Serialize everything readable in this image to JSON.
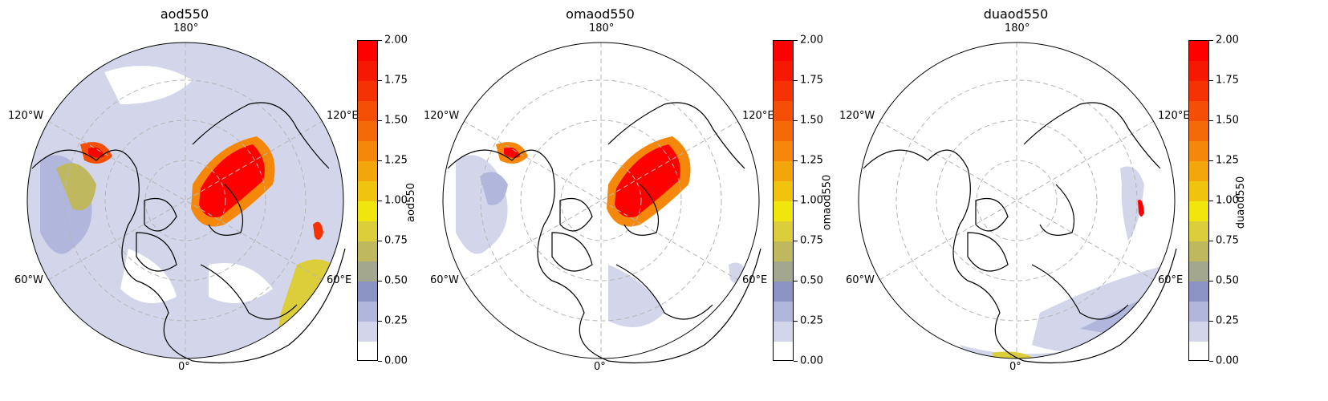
{
  "panels": [
    {
      "title": "aod550",
      "colorbar_label": "aod550"
    },
    {
      "title": "omaod550",
      "colorbar_label": "omaod550"
    },
    {
      "title": "duaod550",
      "colorbar_label": "duaod550"
    }
  ],
  "longitude_labels": {
    "top": "180°",
    "bottom": "0°",
    "upper_left": "120°W",
    "upper_right": "120°E",
    "lower_left": "60°W",
    "lower_right": "60°E"
  },
  "colorbar": {
    "ticks": [
      "0.00",
      "0.25",
      "0.50",
      "0.75",
      "1.00",
      "1.25",
      "1.50",
      "1.75",
      "2.00"
    ],
    "levels": 16,
    "colors": [
      "#ffffff",
      "#d3d6ea",
      "#b0b6dc",
      "#8b93c4",
      "#a3a78e",
      "#c0b85e",
      "#dccd3a",
      "#f0e60e",
      "#f0c40e",
      "#f3a60c",
      "#f5880a",
      "#f56a08",
      "#f54e06",
      "#f53204",
      "#f51802",
      "#ff0000"
    ]
  },
  "colors": {
    "coastline": "#000000",
    "graticule": "#b5b5b5",
    "low_aerosol": "#b0b6dc",
    "high_aerosol": "#ff1a00"
  }
}
